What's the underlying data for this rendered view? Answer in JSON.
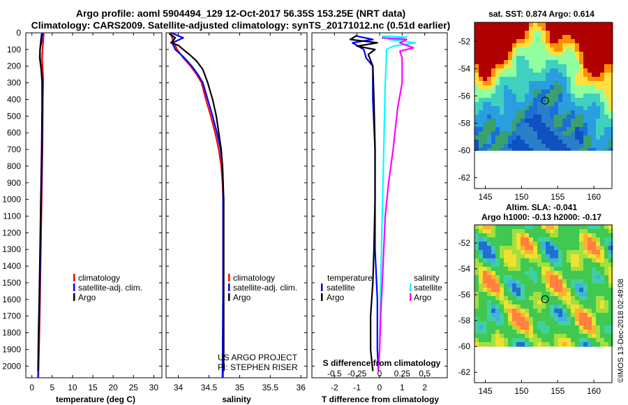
{
  "header": {
    "line1": "Argo profile: aoml 5904494_129 12-Oct-2017 56.35S 153.25E (NRT data)",
    "line2": "Climatology: CARS2009. Satellite-adjusted climatology: synTS_20171012.nc (0.51d earlier)"
  },
  "colors": {
    "climatology": "#ff0000",
    "satellite": "#0000ff",
    "argo": "#000000",
    "sat_salinity": "#00ffff",
    "argo_salinity": "#ff00ff"
  },
  "depth_ticks": [
    0,
    100,
    200,
    300,
    400,
    500,
    600,
    700,
    800,
    900,
    1000,
    1100,
    1200,
    1300,
    1400,
    1500,
    1600,
    1700,
    1800,
    1900,
    2000
  ],
  "chart_data": [
    {
      "type": "line",
      "id": "temperature",
      "xlabel": "temperature (deg C)",
      "ylabel": "depth",
      "xlim": [
        -1.5,
        32
      ],
      "ylim": [
        2070,
        0
      ],
      "xticks": [
        0,
        5,
        10,
        15,
        20,
        25,
        30
      ],
      "legend": [
        "climatology",
        "satellite-adj. clim.",
        "Argo"
      ],
      "legend_position": "lower-right",
      "series": [
        {
          "name": "climatology",
          "color": "#ff0000",
          "points": [
            [
              2.9,
              0
            ],
            [
              2.8,
              50
            ],
            [
              2.6,
              100
            ],
            [
              2.5,
              150
            ],
            [
              2.6,
              200
            ],
            [
              2.8,
              280
            ],
            [
              2.7,
              400
            ],
            [
              2.6,
              700
            ],
            [
              2.4,
              1000
            ],
            [
              2.2,
              1300
            ],
            [
              2.0,
              1600
            ],
            [
              1.8,
              1850
            ],
            [
              1.6,
              2070
            ]
          ]
        },
        {
          "name": "satellite-adj. clim.",
          "color": "#0000ff",
          "points": [
            [
              2.6,
              0
            ],
            [
              2.4,
              50
            ],
            [
              2.0,
              100
            ],
            [
              1.9,
              150
            ],
            [
              2.3,
              220
            ],
            [
              2.6,
              300
            ],
            [
              2.6,
              450
            ],
            [
              2.5,
              700
            ],
            [
              2.3,
              1000
            ],
            [
              2.1,
              1300
            ],
            [
              1.9,
              1600
            ],
            [
              1.7,
              1850
            ],
            [
              1.5,
              2070
            ]
          ]
        },
        {
          "name": "Argo",
          "color": "#000000",
          "points": [
            [
              2.4,
              5
            ],
            [
              2.2,
              50
            ],
            [
              2.0,
              100
            ],
            [
              2.0,
              150
            ],
            [
              2.3,
              220
            ],
            [
              2.5,
              300
            ],
            [
              2.5,
              450
            ],
            [
              2.4,
              700
            ],
            [
              2.2,
              1000
            ],
            [
              2.0,
              1300
            ],
            [
              1.8,
              1600
            ],
            [
              1.6,
              1850
            ],
            [
              1.5,
              2030
            ]
          ]
        }
      ]
    },
    {
      "type": "line",
      "id": "salinity",
      "xlabel": "salinity",
      "xlim": [
        33.8,
        36.1
      ],
      "ylim": [
        2070,
        0
      ],
      "xticks": [
        34,
        34.5,
        35,
        35.5,
        36
      ],
      "legend": [
        "climatology",
        "satellite-adj. clim.",
        "Argo"
      ],
      "legend_position": "lower-right",
      "annotations": [
        "US ARGO PROJECT",
        "PI: STEPHEN RISER"
      ],
      "series": [
        {
          "name": "climatology",
          "color": "#ff0000",
          "points": [
            [
              33.87,
              0
            ],
            [
              33.92,
              50
            ],
            [
              33.98,
              100
            ],
            [
              34.08,
              150
            ],
            [
              34.2,
              200
            ],
            [
              34.3,
              250
            ],
            [
              34.38,
              300
            ],
            [
              34.45,
              400
            ],
            [
              34.53,
              500
            ],
            [
              34.6,
              600
            ],
            [
              34.66,
              700
            ],
            [
              34.7,
              800
            ],
            [
              34.72,
              900
            ],
            [
              34.73,
              1000
            ],
            [
              34.73,
              1200
            ],
            [
              34.73,
              1500
            ],
            [
              34.73,
              2070
            ]
          ]
        },
        {
          "name": "satellite-adj. clim.",
          "color": "#0000ff",
          "points": [
            [
              33.88,
              0
            ],
            [
              34.08,
              30
            ],
            [
              33.9,
              60
            ],
            [
              33.95,
              100
            ],
            [
              34.1,
              150
            ],
            [
              34.22,
              200
            ],
            [
              34.32,
              250
            ],
            [
              34.4,
              300
            ],
            [
              34.48,
              400
            ],
            [
              34.56,
              500
            ],
            [
              34.63,
              600
            ],
            [
              34.69,
              700
            ],
            [
              34.72,
              800
            ],
            [
              34.73,
              900
            ],
            [
              34.73,
              1200
            ],
            [
              34.73,
              1500
            ],
            [
              34.72,
              2070
            ]
          ]
        },
        {
          "name": "Argo",
          "color": "#000000",
          "points": [
            [
              33.85,
              5
            ],
            [
              33.95,
              30
            ],
            [
              33.88,
              60
            ],
            [
              34.0,
              75
            ],
            [
              34.08,
              100
            ],
            [
              34.18,
              130
            ],
            [
              34.3,
              170
            ],
            [
              34.4,
              220
            ],
            [
              34.48,
              300
            ],
            [
              34.56,
              400
            ],
            [
              34.62,
              500
            ],
            [
              34.66,
              600
            ],
            [
              34.7,
              700
            ],
            [
              34.72,
              800
            ],
            [
              34.73,
              900
            ],
            [
              34.74,
              1000
            ],
            [
              34.74,
              1500
            ],
            [
              34.74,
              2030
            ]
          ]
        }
      ]
    },
    {
      "type": "line",
      "id": "difference",
      "xlabel": "T difference from climatology",
      "xlabel2": "S difference from climatology",
      "xlim": [
        -3,
        3
      ],
      "ylim": [
        2070,
        0
      ],
      "xticks": [
        -2,
        -1,
        0,
        1,
        2
      ],
      "s_ticks": [
        "-0.5",
        "-0.25",
        "0",
        "0.25",
        "0.5"
      ],
      "legend_left_title": "temperature",
      "legend_left": [
        "satellite",
        "Argo"
      ],
      "legend_right_title": "salinity",
      "legend_right": [
        "satellite",
        "Argo"
      ],
      "series": [
        {
          "name": "T satellite",
          "color": "#0000ff",
          "points": [
            [
              -1.0,
              20
            ],
            [
              -0.3,
              40
            ],
            [
              -1.2,
              60
            ],
            [
              -0.7,
              100
            ],
            [
              -0.6,
              150
            ],
            [
              -0.3,
              200
            ],
            [
              -0.3,
              400
            ],
            [
              -0.2,
              700
            ],
            [
              -0.2,
              1000
            ],
            [
              -0.2,
              1300
            ],
            [
              -0.1,
              1600
            ],
            [
              -0.1,
              1900
            ],
            [
              -0.05,
              2030
            ]
          ]
        },
        {
          "name": "T Argo",
          "color": "#000000",
          "points": [
            [
              -1.0,
              15
            ],
            [
              -1.3,
              40
            ],
            [
              -0.1,
              60
            ],
            [
              -1.0,
              80
            ],
            [
              -0.2,
              100
            ],
            [
              -0.5,
              130
            ],
            [
              -0.3,
              200
            ],
            [
              -0.25,
              400
            ],
            [
              -0.2,
              700
            ],
            [
              -0.2,
              1000
            ],
            [
              -0.25,
              1300
            ],
            [
              -0.3,
              1500
            ],
            [
              -0.4,
              1700
            ],
            [
              -0.4,
              1900
            ],
            [
              -0.3,
              2030
            ]
          ]
        },
        {
          "name": "S satellite",
          "color": "#00ffff",
          "points": [
            [
              0.1,
              20
            ],
            [
              1.2,
              25
            ],
            [
              0.4,
              40
            ],
            [
              1.6,
              60
            ],
            [
              0.6,
              80
            ],
            [
              0.3,
              100
            ],
            [
              0.3,
              150
            ],
            [
              0.25,
              300
            ],
            [
              0.2,
              600
            ],
            [
              0.15,
              900
            ],
            [
              0.1,
              1200
            ],
            [
              0.05,
              1500
            ],
            [
              0.0,
              1900
            ],
            [
              -0.05,
              2030
            ]
          ]
        },
        {
          "name": "S Argo",
          "color": "#ff00ff",
          "points": [
            [
              0.1,
              30
            ],
            [
              1.2,
              40
            ],
            [
              0.9,
              60
            ],
            [
              1.5,
              90
            ],
            [
              0.9,
              110
            ],
            [
              1.0,
              150
            ],
            [
              1.0,
              200
            ],
            [
              1.0,
              300
            ],
            [
              0.8,
              450
            ],
            [
              0.6,
              700
            ],
            [
              0.4,
              900
            ],
            [
              0.25,
              1100
            ],
            [
              0.15,
              1400
            ],
            [
              0.05,
              1700
            ],
            [
              0.0,
              1900
            ],
            [
              -0.05,
              2030
            ]
          ]
        }
      ]
    }
  ],
  "map_sst": {
    "title": "sat. SST: 0.874 Argo: 0.614",
    "xticks": [
      145,
      150,
      155,
      160
    ],
    "yticks": [
      -52,
      -54,
      -56,
      -58,
      -60,
      -62
    ],
    "lon_range": [
      143.5,
      162.5
    ],
    "lat_range": [
      -62.8,
      -50.6
    ],
    "data_lat_min": -60,
    "float_position": [
      153.25,
      -56.35
    ]
  },
  "map_sla": {
    "title1": "Altim. SLA: -0.041",
    "title2": "Argo h1000: -0.13 h2000: -0.17",
    "xticks": [
      145,
      150,
      155,
      160
    ],
    "yticks": [
      -52,
      -54,
      -56,
      -58,
      -60,
      -62
    ],
    "lon_range": [
      143.5,
      162.5
    ],
    "lat_range": [
      -62.8,
      -50.6
    ],
    "data_lat_min": -60,
    "float_position": [
      153.25,
      -56.35
    ]
  },
  "credit": "©IMOS 13-Dec-2018 02:49:08"
}
